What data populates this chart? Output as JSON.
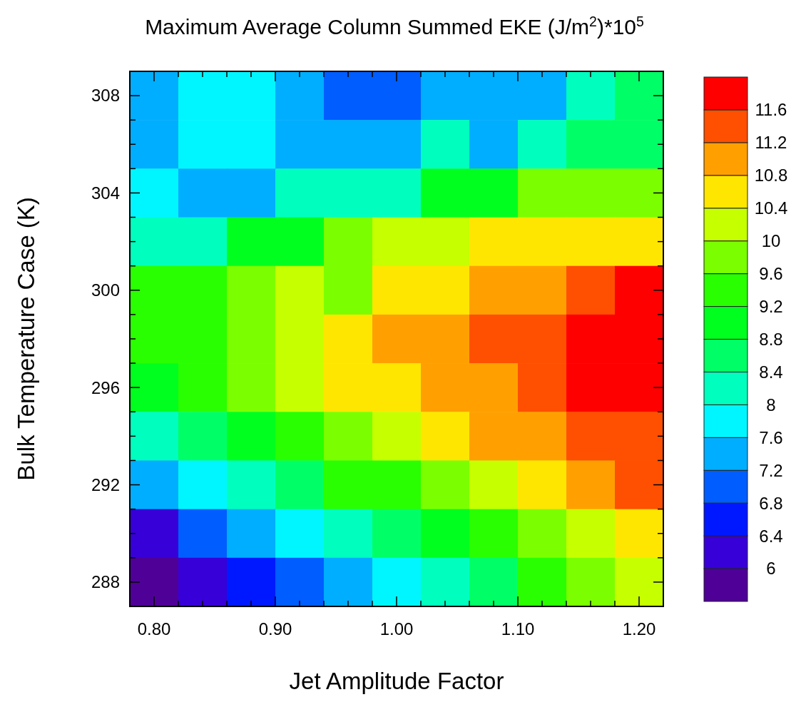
{
  "chart_data": {
    "type": "heatmap",
    "title": "Maximum Average Column Summed EKE (J/m$^{2}$)*10$^{5}$",
    "xlabel": "Jet Amplitude Factor",
    "ylabel": "Bulk Temperature Case (K)",
    "x": [
      0.8,
      0.84,
      0.88,
      0.92,
      0.96,
      1.0,
      1.04,
      1.08,
      1.12,
      1.16,
      1.2
    ],
    "y": [
      308,
      306,
      304,
      302,
      300,
      298,
      296,
      294,
      292,
      290,
      288
    ],
    "xlim": [
      0.78,
      1.22
    ],
    "ylim": [
      287,
      309
    ],
    "xticks": [
      {
        "value": 0.78,
        "label": null
      },
      {
        "value": 0.8,
        "label": "0.80"
      },
      {
        "value": 0.82,
        "label": null
      },
      {
        "value": 0.84,
        "label": null
      },
      {
        "value": 0.86,
        "label": null
      },
      {
        "value": 0.88,
        "label": null
      },
      {
        "value": 0.9,
        "label": "0.90"
      },
      {
        "value": 0.92,
        "label": null
      },
      {
        "value": 0.94,
        "label": null
      },
      {
        "value": 0.96,
        "label": null
      },
      {
        "value": 0.98,
        "label": null
      },
      {
        "value": 1.0,
        "label": "1.00"
      },
      {
        "value": 1.02,
        "label": null
      },
      {
        "value": 1.04,
        "label": null
      },
      {
        "value": 1.06,
        "label": null
      },
      {
        "value": 1.08,
        "label": null
      },
      {
        "value": 1.1,
        "label": "1.10"
      },
      {
        "value": 1.12,
        "label": null
      },
      {
        "value": 1.14,
        "label": null
      },
      {
        "value": 1.16,
        "label": null
      },
      {
        "value": 1.18,
        "label": null
      },
      {
        "value": 1.2,
        "label": "1.20"
      },
      {
        "value": 1.22,
        "label": null
      }
    ],
    "yticks": [
      {
        "value": 287,
        "label": null
      },
      288,
      {
        "value": 289,
        "label": null
      },
      {
        "value": 290,
        "label": null
      },
      {
        "value": 291,
        "label": null
      },
      292,
      {
        "value": 293,
        "label": null
      },
      {
        "value": 294,
        "label": null
      },
      {
        "value": 295,
        "label": null
      },
      296,
      {
        "value": 297,
        "label": null
      },
      {
        "value": 298,
        "label": null
      },
      {
        "value": 299,
        "label": null
      },
      300,
      {
        "value": 301,
        "label": null
      },
      {
        "value": 302,
        "label": null
      },
      {
        "value": 303,
        "label": null
      },
      304,
      {
        "value": 305,
        "label": null
      },
      {
        "value": 306,
        "label": null
      },
      {
        "value": 307,
        "label": null
      },
      308,
      {
        "value": 309,
        "label": null
      }
    ],
    "cells": [
      [
        7.4,
        7.8,
        7.8,
        7.4,
        7.0,
        7.0,
        7.4,
        7.4,
        7.4,
        8.2,
        8.6
      ],
      [
        7.4,
        7.8,
        7.8,
        7.4,
        7.4,
        7.4,
        8.2,
        7.4,
        8.2,
        8.6,
        8.6
      ],
      [
        7.8,
        7.4,
        7.4,
        8.2,
        8.2,
        8.2,
        9.0,
        9.0,
        9.8,
        9.8,
        9.8
      ],
      [
        8.2,
        8.2,
        9.0,
        9.0,
        9.8,
        10.2,
        10.2,
        10.6,
        10.6,
        10.6,
        10.6
      ],
      [
        9.4,
        9.4,
        9.8,
        10.2,
        9.8,
        10.6,
        10.6,
        11.0,
        11.0,
        11.4,
        11.8
      ],
      [
        9.4,
        9.4,
        9.8,
        10.2,
        10.6,
        11.0,
        11.0,
        11.4,
        11.4,
        11.8,
        11.8
      ],
      [
        9.0,
        9.4,
        9.8,
        10.2,
        10.6,
        10.6,
        11.0,
        11.0,
        11.4,
        11.8,
        11.8
      ],
      [
        8.2,
        8.6,
        9.0,
        9.4,
        9.8,
        10.2,
        10.6,
        11.0,
        11.0,
        11.4,
        11.4
      ],
      [
        7.4,
        7.8,
        8.2,
        8.6,
        9.4,
        9.4,
        9.8,
        10.2,
        10.6,
        11.0,
        11.4
      ],
      [
        6.2,
        7.0,
        7.4,
        7.8,
        8.2,
        8.6,
        9.0,
        9.4,
        9.8,
        10.2,
        10.6
      ],
      [
        5.8,
        6.2,
        6.6,
        7.0,
        7.4,
        7.8,
        8.2,
        8.6,
        9.4,
        9.8,
        10.2
      ]
    ],
    "clim": [
      5.6,
      12.0
    ],
    "cticks": [
      6,
      6.4,
      6.8,
      7.2,
      7.6,
      8,
      8.4,
      8.8,
      9.2,
      9.6,
      10,
      10.4,
      10.8,
      11.2,
      11.6
    ],
    "colors": [
      "#4f0097",
      "#3700d8",
      "#0018ff",
      "#005dff",
      "#00aeff",
      "#00f6ff",
      "#00ffbe",
      "#00ff66",
      "#00ff1e",
      "#29ff00",
      "#7bff00",
      "#c6ff00",
      "#ffe600",
      "#ffa000",
      "#ff4f00",
      "#ff0000"
    ]
  }
}
